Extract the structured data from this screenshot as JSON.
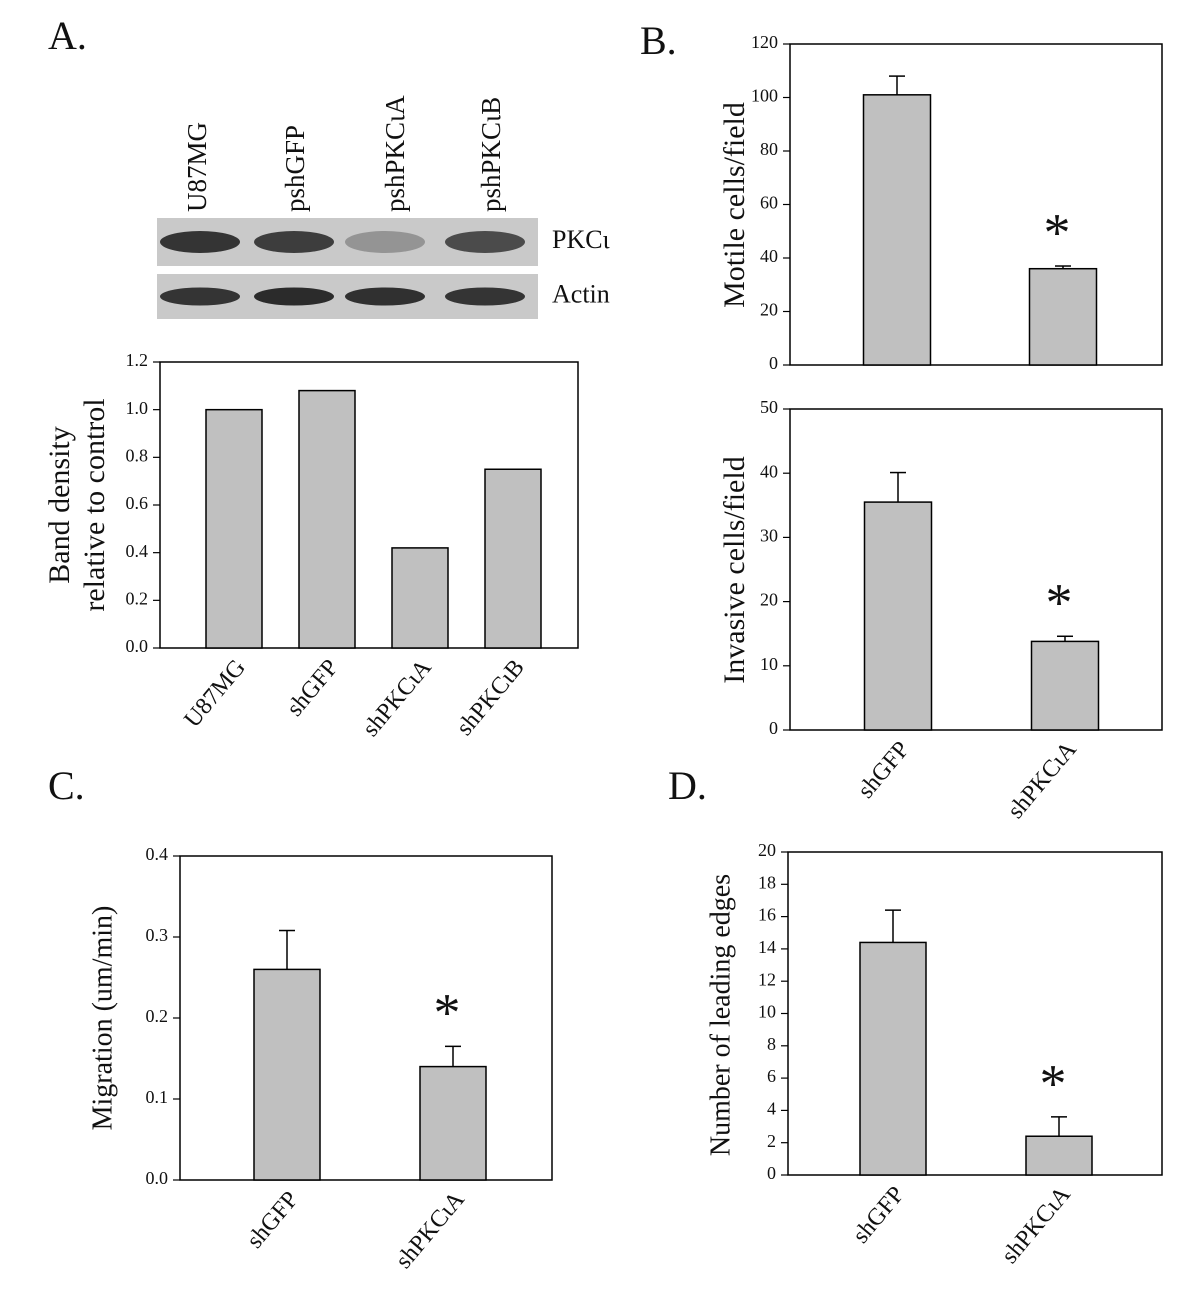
{
  "chart_data": [
    {
      "type": "bar",
      "panel": "A.",
      "blot": {
        "lanes": [
          "U87MG",
          "pshGFP",
          "pshPKCιA",
          "pshPKCιB"
        ],
        "rows": [
          "PKCι",
          "Actin"
        ]
      },
      "ylabel": [
        "Band density",
        "relative to control"
      ],
      "categories": [
        "U87MG",
        "shGFP",
        "shPKCιA",
        "shPKCιB"
      ],
      "values": [
        1.0,
        1.08,
        0.42,
        0.75
      ],
      "color": "#c0c0c0",
      "ylim": [
        0,
        1.2
      ],
      "yticks": [
        {
          "value": 0,
          "label": "0.0"
        },
        0.2,
        0.4,
        0.6,
        0.8,
        {
          "value": 1,
          "label": "1.0"
        },
        1.2
      ]
    },
    {
      "type": "bar",
      "panel": "B.",
      "ylabel": "Motile cells/field",
      "categories": [
        null,
        null
      ],
      "values": [
        101,
        36
      ],
      "errors": [
        7,
        1
      ],
      "annotations": [
        null,
        "*"
      ],
      "color": "#c0c0c0",
      "ylim": [
        0,
        120
      ],
      "yticks": [
        0,
        20,
        40,
        60,
        80,
        100,
        120
      ]
    },
    {
      "type": "bar",
      "ylabel": "Invasive cells/field",
      "categories": [
        "shGFP",
        "shPKCιA"
      ],
      "values": [
        35.5,
        13.8
      ],
      "errors": [
        4.6,
        0.8
      ],
      "annotations": [
        null,
        "*"
      ],
      "color": "#c0c0c0",
      "ylim": [
        0,
        50
      ],
      "yticks": [
        0,
        10,
        20,
        30,
        40,
        50
      ]
    },
    {
      "type": "bar",
      "panel": "C.",
      "ylabel": "Migration (um/min)",
      "categories": [
        "shGFP",
        "shPKCιA"
      ],
      "values": [
        0.26,
        0.14
      ],
      "errors": [
        0.048,
        0.025
      ],
      "annotations": [
        null,
        "*"
      ],
      "color": "#c0c0c0",
      "ylim": [
        0,
        0.4
      ],
      "yticks": [
        {
          "value": 0,
          "label": "0.0"
        },
        0.1,
        0.2,
        0.3,
        0.4
      ]
    },
    {
      "type": "bar",
      "panel": "D.",
      "ylabel": "Number of leading edges",
      "categories": [
        "shGFP",
        "shPKCιA"
      ],
      "values": [
        14.4,
        2.4
      ],
      "errors": [
        2.0,
        1.2
      ],
      "annotations": [
        null,
        "*"
      ],
      "color": "#c0c0c0",
      "ylim": [
        0,
        20
      ],
      "yticks": [
        0,
        2,
        4,
        6,
        8,
        10,
        12,
        14,
        16,
        18,
        20
      ]
    }
  ]
}
